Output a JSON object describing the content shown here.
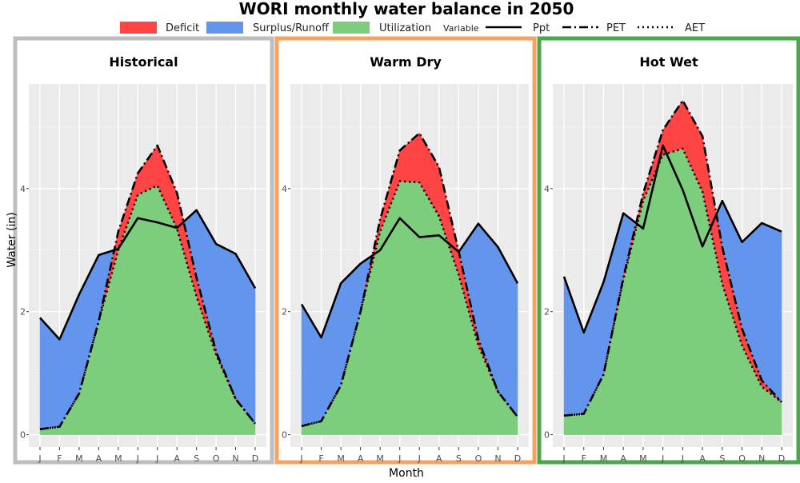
{
  "title": "WORI monthly water balance in 2050",
  "legend": {
    "fill_items": [
      {
        "label": "Deficit",
        "color": "#ff4444"
      },
      {
        "label": "Surplus/Runoff",
        "color": "#6495ed"
      },
      {
        "label": "Utilization",
        "color": "#7ccd7c"
      }
    ],
    "variable_title": "Variable",
    "line_items": [
      {
        "label": "Ppt",
        "style": "solid"
      },
      {
        "label": "PET",
        "style": "dashdot"
      },
      {
        "label": "AET",
        "style": "dotted"
      }
    ]
  },
  "xlabel": "Month",
  "ylabel": "Water (in)",
  "chart_data": [
    {
      "type": "area",
      "title": "Historical",
      "border_color": "#bebebe",
      "categories": [
        "J",
        "F",
        "M",
        "A",
        "M",
        "J",
        "J",
        "A",
        "S",
        "O",
        "N",
        "D"
      ],
      "ylim": [
        -0.2,
        5.7
      ],
      "yticks": [
        0,
        2,
        4
      ],
      "series": [
        {
          "name": "Ppt",
          "values": [
            1.9,
            1.55,
            2.28,
            2.92,
            3.02,
            3.52,
            3.45,
            3.36,
            3.65,
            3.1,
            2.94,
            2.38
          ]
        },
        {
          "name": "PET",
          "values": [
            0.09,
            0.13,
            0.67,
            1.84,
            3.3,
            4.25,
            4.7,
            3.93,
            2.55,
            1.35,
            0.58,
            0.18
          ]
        },
        {
          "name": "AET",
          "values": [
            0.09,
            0.13,
            0.67,
            1.84,
            3.0,
            3.9,
            4.05,
            3.35,
            2.25,
            1.3,
            0.58,
            0.18
          ]
        }
      ]
    },
    {
      "type": "area",
      "title": "Warm Dry",
      "border_color": "#f4a460",
      "categories": [
        "J",
        "F",
        "M",
        "A",
        "M",
        "J",
        "J",
        "A",
        "S",
        "O",
        "N",
        "D"
      ],
      "ylim": [
        -0.2,
        5.7
      ],
      "yticks": [
        0,
        2,
        4
      ],
      "series": [
        {
          "name": "Ppt",
          "values": [
            2.12,
            1.58,
            2.46,
            2.78,
            3.0,
            3.52,
            3.21,
            3.24,
            2.97,
            3.43,
            3.05,
            2.46
          ]
        },
        {
          "name": "PET",
          "values": [
            0.14,
            0.22,
            0.8,
            2.0,
            3.5,
            4.62,
            4.9,
            4.35,
            2.98,
            1.55,
            0.7,
            0.29
          ]
        },
        {
          "name": "AET",
          "values": [
            0.14,
            0.22,
            0.8,
            2.0,
            3.3,
            4.12,
            4.1,
            3.55,
            2.6,
            1.45,
            0.7,
            0.29
          ]
        }
      ]
    },
    {
      "type": "area",
      "title": "Hot Wet",
      "border_color": "#4ca64c",
      "categories": [
        "J",
        "F",
        "M",
        "A",
        "M",
        "J",
        "J",
        "A",
        "S",
        "O",
        "N",
        "D"
      ],
      "ylim": [
        -0.2,
        5.7
      ],
      "yticks": [
        0,
        2,
        4
      ],
      "series": [
        {
          "name": "Ppt",
          "values": [
            2.57,
            1.66,
            2.48,
            3.6,
            3.35,
            4.7,
            3.98,
            3.06,
            3.8,
            3.13,
            3.44,
            3.3
          ]
        },
        {
          "name": "PET",
          "values": [
            0.31,
            0.34,
            0.98,
            2.55,
            3.92,
            4.95,
            5.43,
            4.85,
            3.05,
            1.72,
            0.88,
            0.53
          ]
        },
        {
          "name": "AET",
          "values": [
            0.31,
            0.34,
            0.98,
            2.52,
            3.8,
            4.55,
            4.65,
            3.95,
            2.45,
            1.45,
            0.78,
            0.53
          ]
        }
      ]
    }
  ]
}
